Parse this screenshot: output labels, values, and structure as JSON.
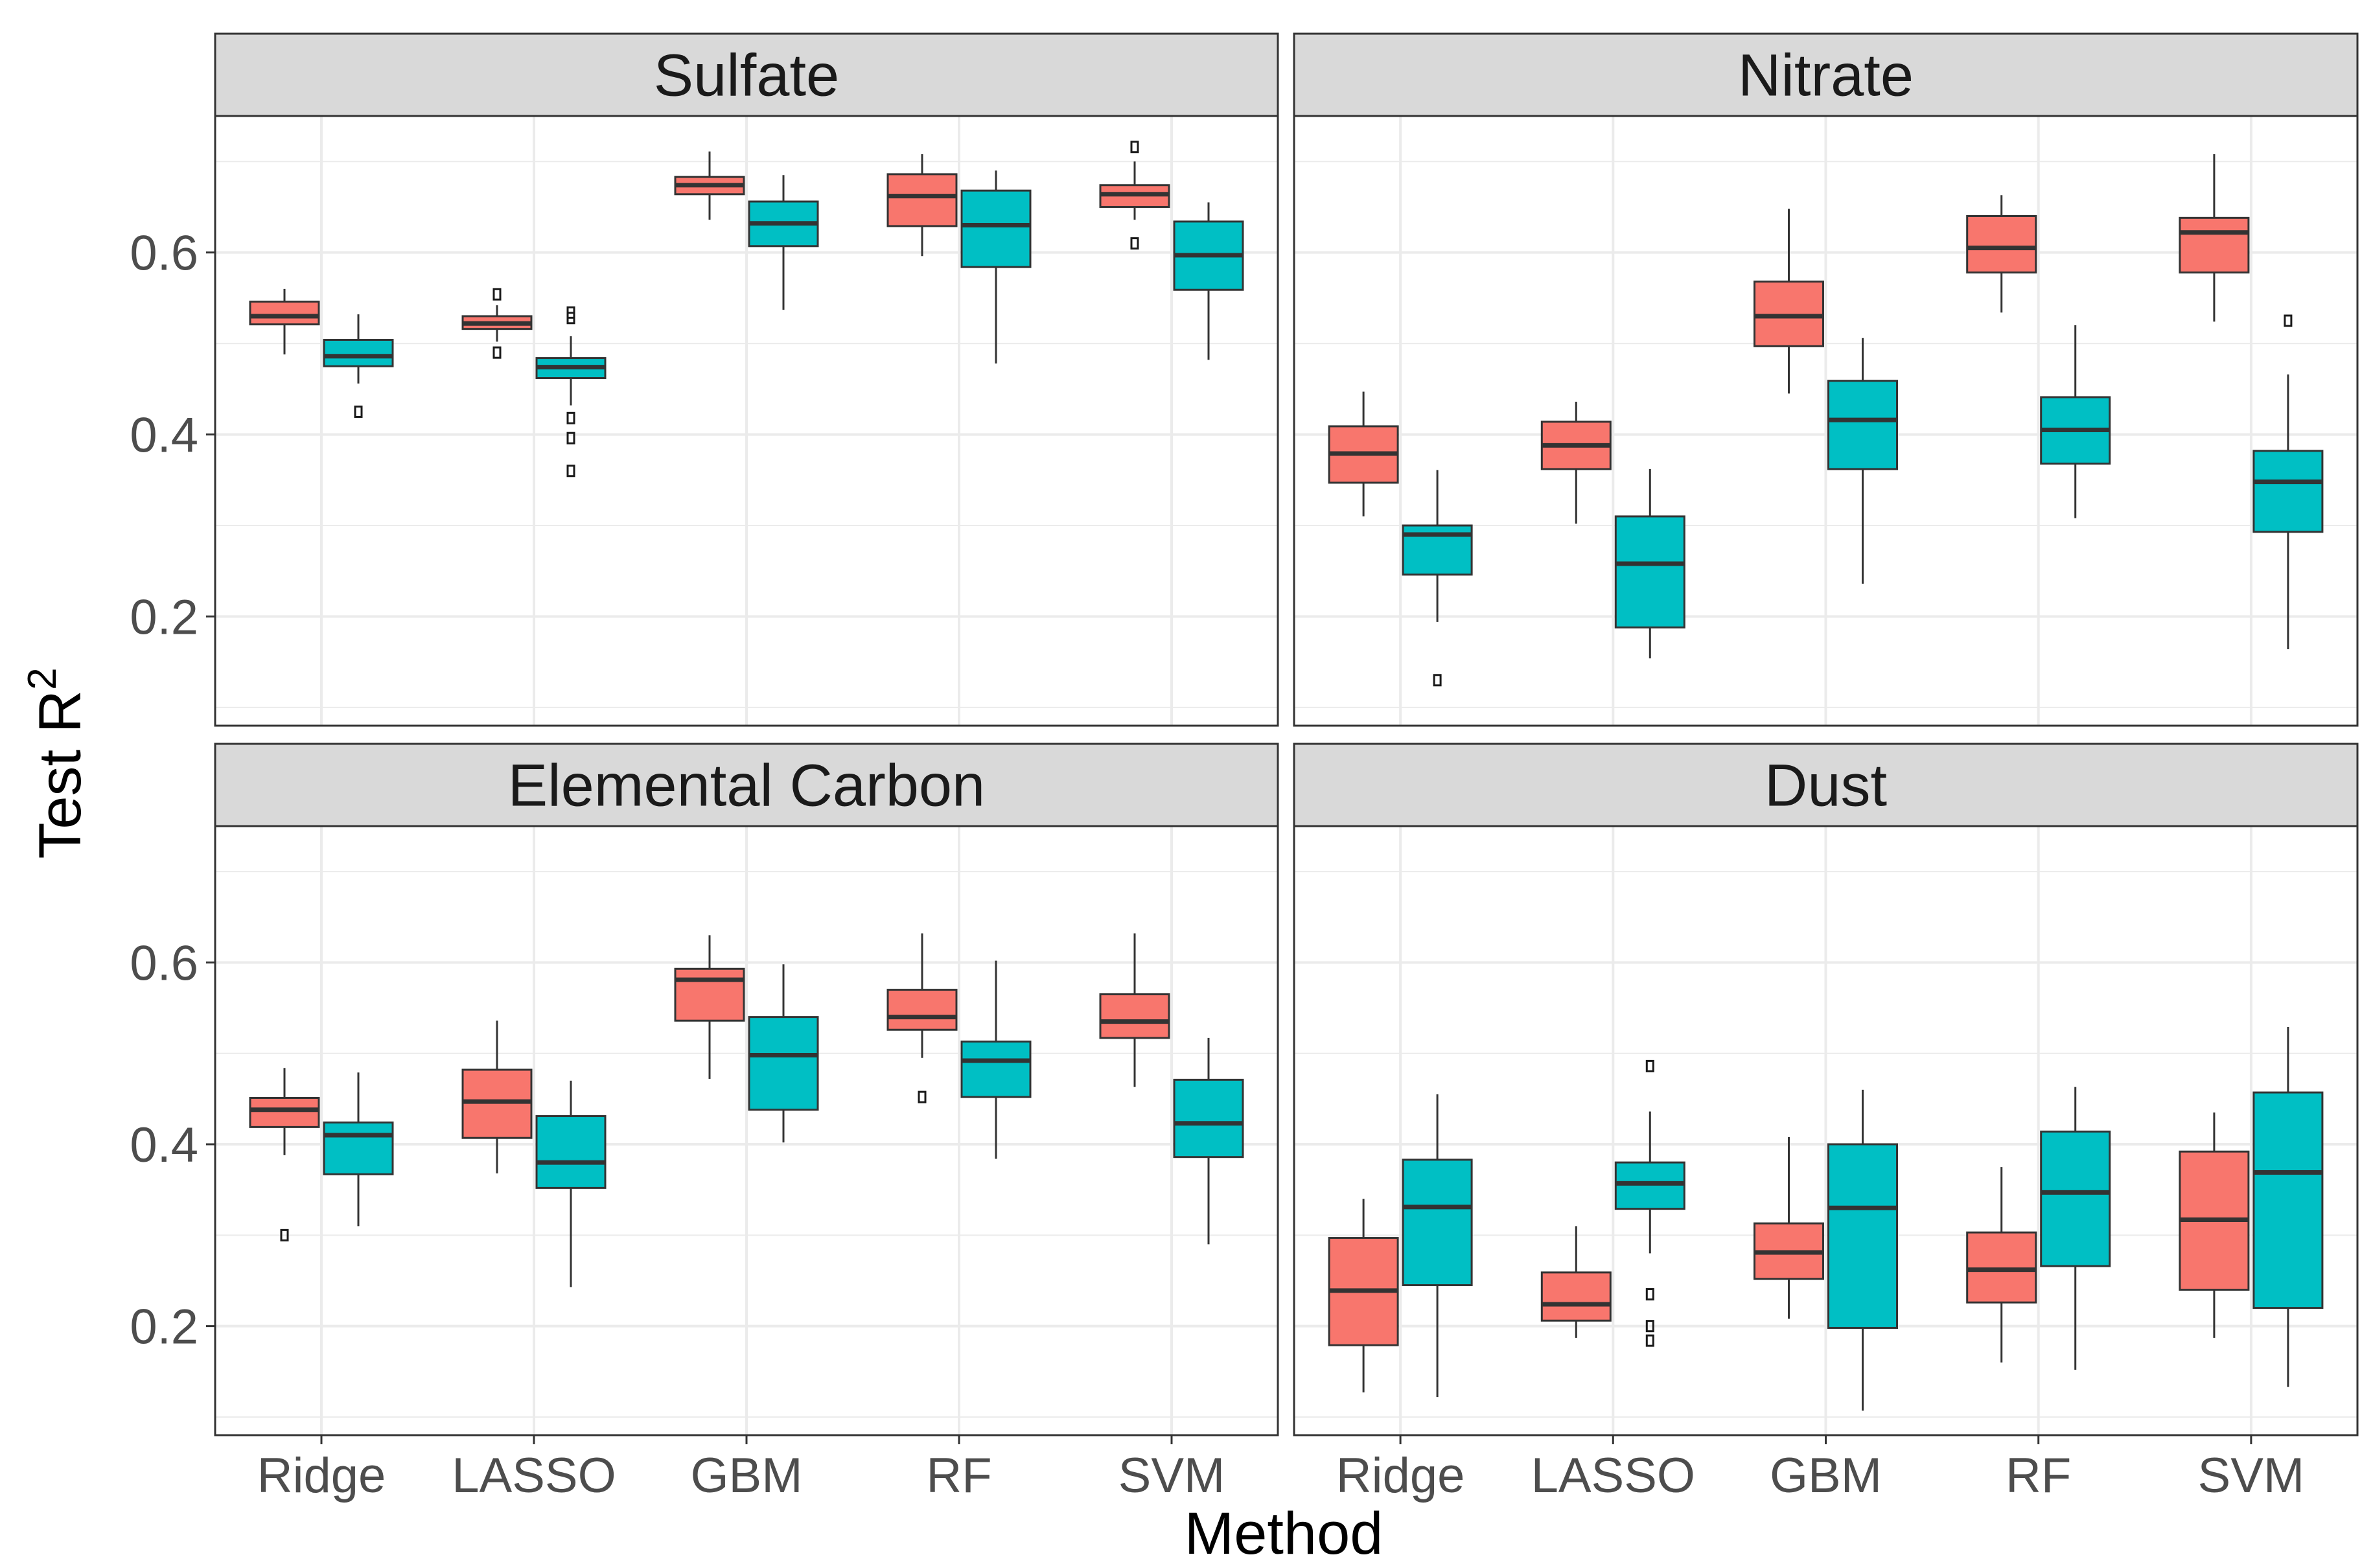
{
  "chart_data": {
    "type": "boxplot",
    "layout": "facet grid, 2 rows x 2 columns, shared x and y axes",
    "xlabel": "Method",
    "ylabel": "Test R",
    "ylabel_superscript": "2",
    "ylim": [
      0.08,
      0.75
    ],
    "yticks": [
      0.2,
      0.4,
      0.6
    ],
    "ytick_labels": [
      "0.2",
      "0.4",
      "0.6"
    ],
    "categories": [
      "Ridge",
      "LASSO",
      "GBM",
      "RF",
      "SVM"
    ],
    "group_colors": [
      "#F8766D",
      "#00BFC4"
    ],
    "grid": true,
    "legend": "none",
    "panels": [
      {
        "title": "Sulfate",
        "boxes": {
          "Ridge": [
            {
              "whisker_low": 0.488,
              "q1": 0.521,
              "median": 0.53,
              "q3": 0.546,
              "whisker_high": 0.56,
              "outliers": []
            },
            {
              "whisker_low": 0.456,
              "q1": 0.475,
              "median": 0.486,
              "q3": 0.504,
              "whisker_high": 0.532,
              "outliers": [
                0.425
              ]
            }
          ],
          "LASSO": [
            {
              "whisker_low": 0.502,
              "q1": 0.516,
              "median": 0.522,
              "q3": 0.53,
              "whisker_high": 0.542,
              "outliers": [
                0.554,
                0.49
              ]
            },
            {
              "whisker_low": 0.432,
              "q1": 0.462,
              "median": 0.474,
              "q3": 0.484,
              "whisker_high": 0.508,
              "outliers": [
                0.534,
                0.528,
                0.418,
                0.396,
                0.36
              ]
            }
          ],
          "GBM": [
            {
              "whisker_low": 0.636,
              "q1": 0.664,
              "median": 0.674,
              "q3": 0.683,
              "whisker_high": 0.711,
              "outliers": []
            },
            {
              "whisker_low": 0.537,
              "q1": 0.607,
              "median": 0.632,
              "q3": 0.656,
              "whisker_high": 0.685,
              "outliers": []
            }
          ],
          "RF": [
            {
              "whisker_low": 0.596,
              "q1": 0.629,
              "median": 0.662,
              "q3": 0.686,
              "whisker_high": 0.708,
              "outliers": []
            },
            {
              "whisker_low": 0.478,
              "q1": 0.584,
              "median": 0.63,
              "q3": 0.668,
              "whisker_high": 0.69,
              "outliers": []
            }
          ],
          "SVM": [
            {
              "whisker_low": 0.636,
              "q1": 0.65,
              "median": 0.664,
              "q3": 0.674,
              "whisker_high": 0.7,
              "outliers": [
                0.716,
                0.61
              ]
            },
            {
              "whisker_low": 0.482,
              "q1": 0.559,
              "median": 0.597,
              "q3": 0.634,
              "whisker_high": 0.655,
              "outliers": []
            }
          ]
        }
      },
      {
        "title": "Nitrate",
        "boxes": {
          "Ridge": [
            {
              "whisker_low": 0.31,
              "q1": 0.347,
              "median": 0.379,
              "q3": 0.409,
              "whisker_high": 0.447,
              "outliers": []
            },
            {
              "whisker_low": 0.194,
              "q1": 0.246,
              "median": 0.29,
              "q3": 0.3,
              "whisker_high": 0.361,
              "outliers": [
                0.13
              ]
            }
          ],
          "LASSO": [
            {
              "whisker_low": 0.302,
              "q1": 0.362,
              "median": 0.388,
              "q3": 0.414,
              "whisker_high": 0.436,
              "outliers": []
            },
            {
              "whisker_low": 0.154,
              "q1": 0.188,
              "median": 0.258,
              "q3": 0.31,
              "whisker_high": 0.362,
              "outliers": []
            }
          ],
          "GBM": [
            {
              "whisker_low": 0.445,
              "q1": 0.497,
              "median": 0.53,
              "q3": 0.568,
              "whisker_high": 0.648,
              "outliers": []
            },
            {
              "whisker_low": 0.236,
              "q1": 0.362,
              "median": 0.416,
              "q3": 0.459,
              "whisker_high": 0.506,
              "outliers": []
            }
          ],
          "RF": [
            {
              "whisker_low": 0.534,
              "q1": 0.578,
              "median": 0.605,
              "q3": 0.64,
              "whisker_high": 0.663,
              "outliers": []
            },
            {
              "whisker_low": 0.308,
              "q1": 0.368,
              "median": 0.405,
              "q3": 0.441,
              "whisker_high": 0.52,
              "outliers": []
            }
          ],
          "SVM": [
            {
              "whisker_low": 0.524,
              "q1": 0.578,
              "median": 0.622,
              "q3": 0.638,
              "whisker_high": 0.708,
              "outliers": []
            },
            {
              "whisker_low": 0.164,
              "q1": 0.293,
              "median": 0.348,
              "q3": 0.382,
              "whisker_high": 0.466,
              "outliers": [
                0.525
              ]
            }
          ]
        }
      },
      {
        "title": "Elemental Carbon",
        "boxes": {
          "Ridge": [
            {
              "whisker_low": 0.388,
              "q1": 0.419,
              "median": 0.438,
              "q3": 0.451,
              "whisker_high": 0.484,
              "outliers": [
                0.3
              ]
            },
            {
              "whisker_low": 0.31,
              "q1": 0.367,
              "median": 0.41,
              "q3": 0.424,
              "whisker_high": 0.479,
              "outliers": []
            }
          ],
          "LASSO": [
            {
              "whisker_low": 0.368,
              "q1": 0.407,
              "median": 0.447,
              "q3": 0.482,
              "whisker_high": 0.536,
              "outliers": []
            },
            {
              "whisker_low": 0.243,
              "q1": 0.352,
              "median": 0.38,
              "q3": 0.431,
              "whisker_high": 0.47,
              "outliers": []
            }
          ],
          "GBM": [
            {
              "whisker_low": 0.472,
              "q1": 0.536,
              "median": 0.581,
              "q3": 0.593,
              "whisker_high": 0.63,
              "outliers": []
            },
            {
              "whisker_low": 0.402,
              "q1": 0.438,
              "median": 0.498,
              "q3": 0.54,
              "whisker_high": 0.598,
              "outliers": []
            }
          ],
          "RF": [
            {
              "whisker_low": 0.495,
              "q1": 0.526,
              "median": 0.54,
              "q3": 0.57,
              "whisker_high": 0.632,
              "outliers": [
                0.452
              ]
            },
            {
              "whisker_low": 0.384,
              "q1": 0.452,
              "median": 0.492,
              "q3": 0.513,
              "whisker_high": 0.602,
              "outliers": []
            }
          ],
          "SVM": [
            {
              "whisker_low": 0.463,
              "q1": 0.517,
              "median": 0.535,
              "q3": 0.565,
              "whisker_high": 0.632,
              "outliers": []
            },
            {
              "whisker_low": 0.29,
              "q1": 0.386,
              "median": 0.423,
              "q3": 0.471,
              "whisker_high": 0.517,
              "outliers": []
            }
          ]
        }
      },
      {
        "title": "Dust",
        "boxes": {
          "Ridge": [
            {
              "whisker_low": 0.127,
              "q1": 0.179,
              "median": 0.239,
              "q3": 0.297,
              "whisker_high": 0.34,
              "outliers": []
            },
            {
              "whisker_low": 0.122,
              "q1": 0.245,
              "median": 0.331,
              "q3": 0.383,
              "whisker_high": 0.455,
              "outliers": []
            }
          ],
          "LASSO": [
            {
              "whisker_low": 0.187,
              "q1": 0.206,
              "median": 0.224,
              "q3": 0.259,
              "whisker_high": 0.31,
              "outliers": []
            },
            {
              "whisker_low": 0.28,
              "q1": 0.329,
              "median": 0.357,
              "q3": 0.38,
              "whisker_high": 0.436,
              "outliers": [
                0.486,
                0.235,
                0.2,
                0.184
              ]
            }
          ],
          "GBM": [
            {
              "whisker_low": 0.208,
              "q1": 0.252,
              "median": 0.281,
              "q3": 0.313,
              "whisker_high": 0.408,
              "outliers": []
            },
            {
              "whisker_low": 0.107,
              "q1": 0.198,
              "median": 0.33,
              "q3": 0.4,
              "whisker_high": 0.46,
              "outliers": []
            }
          ],
          "RF": [
            {
              "whisker_low": 0.16,
              "q1": 0.226,
              "median": 0.262,
              "q3": 0.303,
              "whisker_high": 0.375,
              "outliers": []
            },
            {
              "whisker_low": 0.152,
              "q1": 0.266,
              "median": 0.347,
              "q3": 0.414,
              "whisker_high": 0.463,
              "outliers": []
            }
          ],
          "SVM": [
            {
              "whisker_low": 0.187,
              "q1": 0.24,
              "median": 0.317,
              "q3": 0.392,
              "whisker_high": 0.435,
              "outliers": []
            },
            {
              "whisker_low": 0.133,
              "q1": 0.22,
              "median": 0.369,
              "q3": 0.457,
              "whisker_high": 0.529,
              "outliers": []
            }
          ]
        }
      }
    ]
  }
}
